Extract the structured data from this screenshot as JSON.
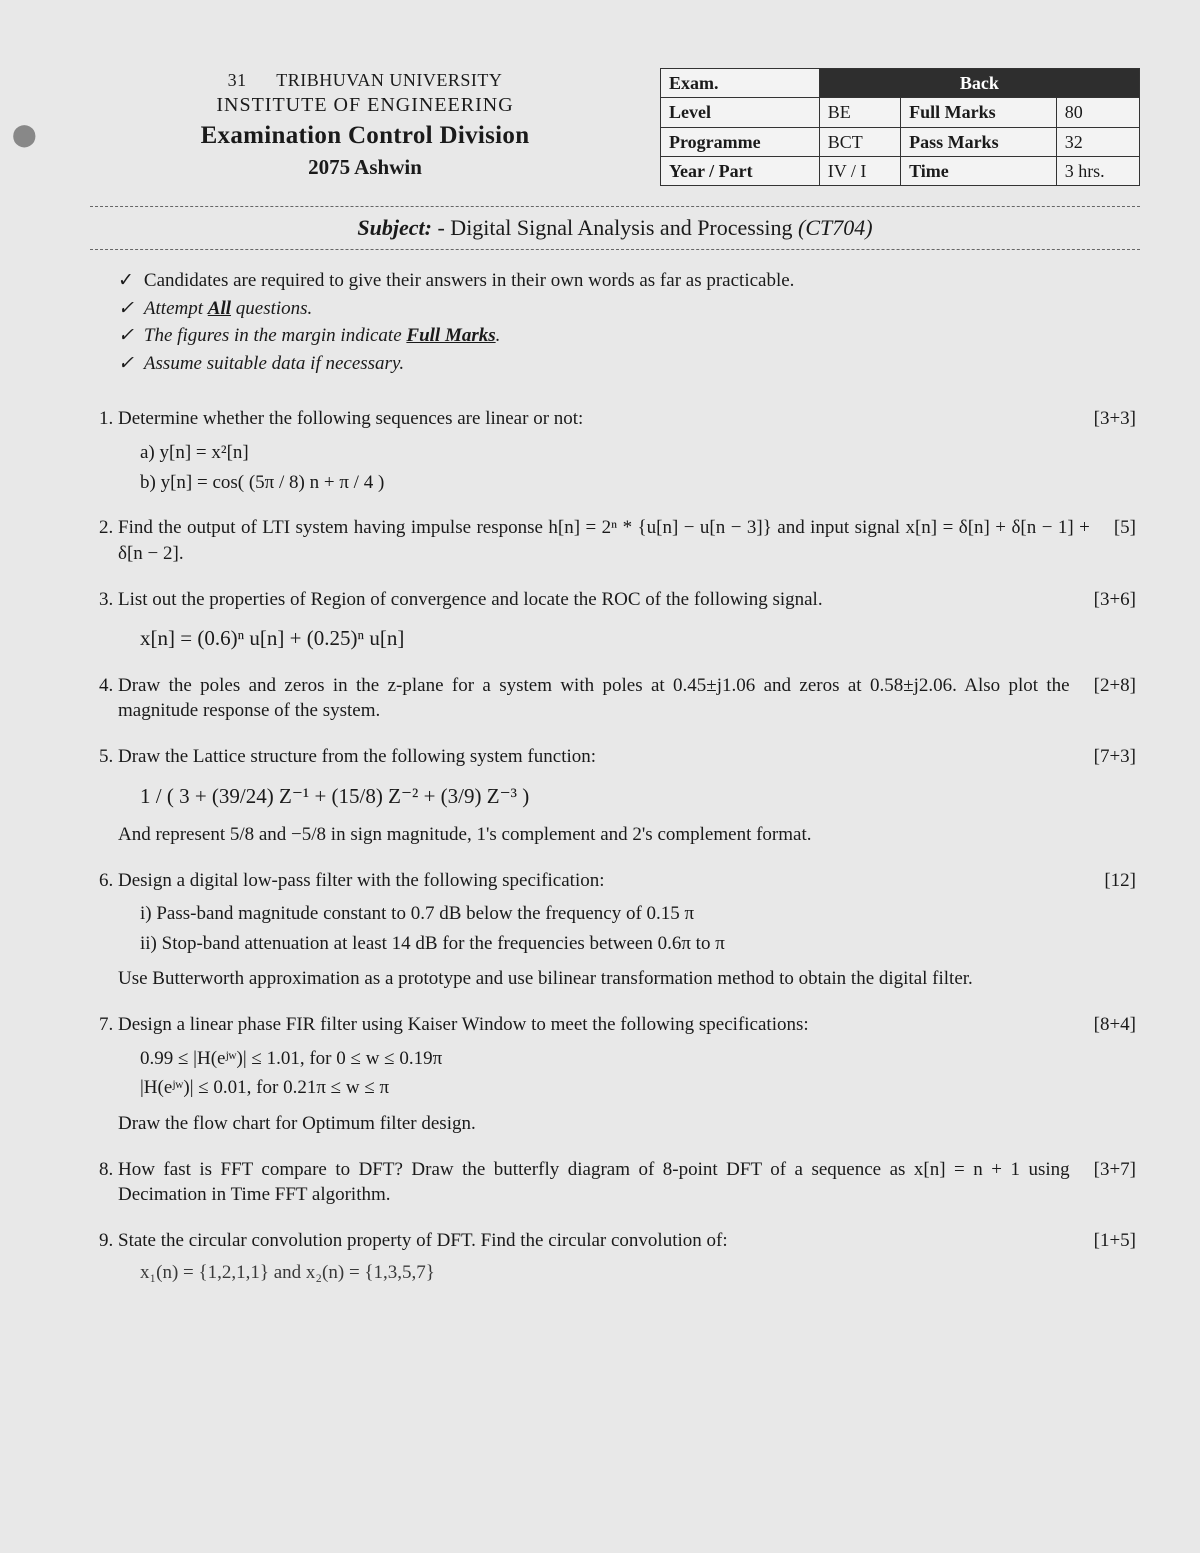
{
  "header": {
    "code": "31",
    "line1": "TRIBHUVAN UNIVERSITY",
    "line2": "INSTITUTE OF ENGINEERING",
    "line3": "Examination Control Division",
    "line4": "2075 Ashwin"
  },
  "meta": {
    "exam_label": "Exam.",
    "exam_value": "Back",
    "rows": [
      {
        "k1": "Level",
        "v1": "BE",
        "k2": "Full Marks",
        "v2": "80"
      },
      {
        "k1": "Programme",
        "v1": "BCT",
        "k2": "Pass Marks",
        "v2": "32"
      },
      {
        "k1": "Year / Part",
        "v1": "IV / I",
        "k2": "Time",
        "v2": "3 hrs."
      }
    ]
  },
  "subject": {
    "label": "Subject:",
    "name": " - Digital Signal Analysis and Processing ",
    "code": "(CT704)"
  },
  "instructions": [
    {
      "text": "Candidates are required to give their answers in their own words as far as practicable.",
      "italic": false
    },
    {
      "text_prefix": "Attempt ",
      "text_ul": "All",
      "text_suffix": " questions.",
      "italic": true
    },
    {
      "text_prefix": "The figures in the margin indicate ",
      "text_ul": "Full Marks",
      "text_suffix": ".",
      "italic": true
    },
    {
      "text": "Assume suitable data if necessary.",
      "italic": true
    }
  ],
  "questions": [
    {
      "text": "Determine whether the following sequences are linear or not:",
      "marks": "[3+3]",
      "sub": [
        "a)   y[n] = x²[n]",
        "b)   y[n] = cos( (5π / 8) n + π / 4 )"
      ]
    },
    {
      "text": "Find the output of LTI system having impulse response  h[n] = 2ⁿ * {u[n] − u[n − 3]}  and input signal  x[n] = δ[n] + δ[n − 1] + δ[n − 2].",
      "marks": "[5]"
    },
    {
      "text": "List out the properties of Region of convergence and locate the ROC of the following signal.",
      "marks": "[3+6]",
      "formula": "x[n] = (0.6)ⁿ u[n] + (0.25)ⁿ u[n]"
    },
    {
      "text": "Draw the poles and zeros in the z-plane for a system with poles at 0.45±j1.06 and zeros at 0.58±j2.06. Also plot the magnitude response of the system.",
      "marks": "[2+8]"
    },
    {
      "text": "Draw the Lattice structure from the following system function:",
      "marks": "[7+3]",
      "formula": "1 / ( 3 + (39/24) Z⁻¹ + (15/8) Z⁻² + (3/9) Z⁻³ )",
      "after": "And represent 5/8 and −5/8 in sign magnitude, 1's complement and 2's complement format."
    },
    {
      "text": "Design a digital low-pass filter with the following specification:",
      "marks": "[12]",
      "sub": [
        "i)   Pass-band magnitude constant to 0.7 dB below the frequency of 0.15 π",
        "ii)  Stop-band attenuation at least 14 dB for the frequencies between 0.6π to π"
      ],
      "after": "Use Butterworth approximation as a prototype and use bilinear transformation method to obtain the digital filter."
    },
    {
      "text": "Design a linear phase FIR filter using Kaiser Window to meet the following specifications:",
      "marks": "[8+4]",
      "sub": [
        "0.99 ≤ |H(eʲʷ)| ≤ 1.01,      for  0 ≤ w ≤ 0.19π",
        "      |H(eʲʷ)| ≤ 0.01,        for  0.21π ≤ w ≤ π"
      ],
      "after": "Draw the flow chart for Optimum filter design."
    },
    {
      "text": "How fast is FFT compare to DFT? Draw the butterfly diagram of 8-point DFT of a sequence as  x[n] = n + 1  using Decimation in Time FFT algorithm.",
      "marks": "[3+7]"
    },
    {
      "text": "State the circular convolution property of DFT. Find the circular convolution of:",
      "marks": "[1+5]",
      "cut": "x₁(n) = {1,2,1,1}  and  x₂(n) = {1,3,5,7}"
    }
  ]
}
